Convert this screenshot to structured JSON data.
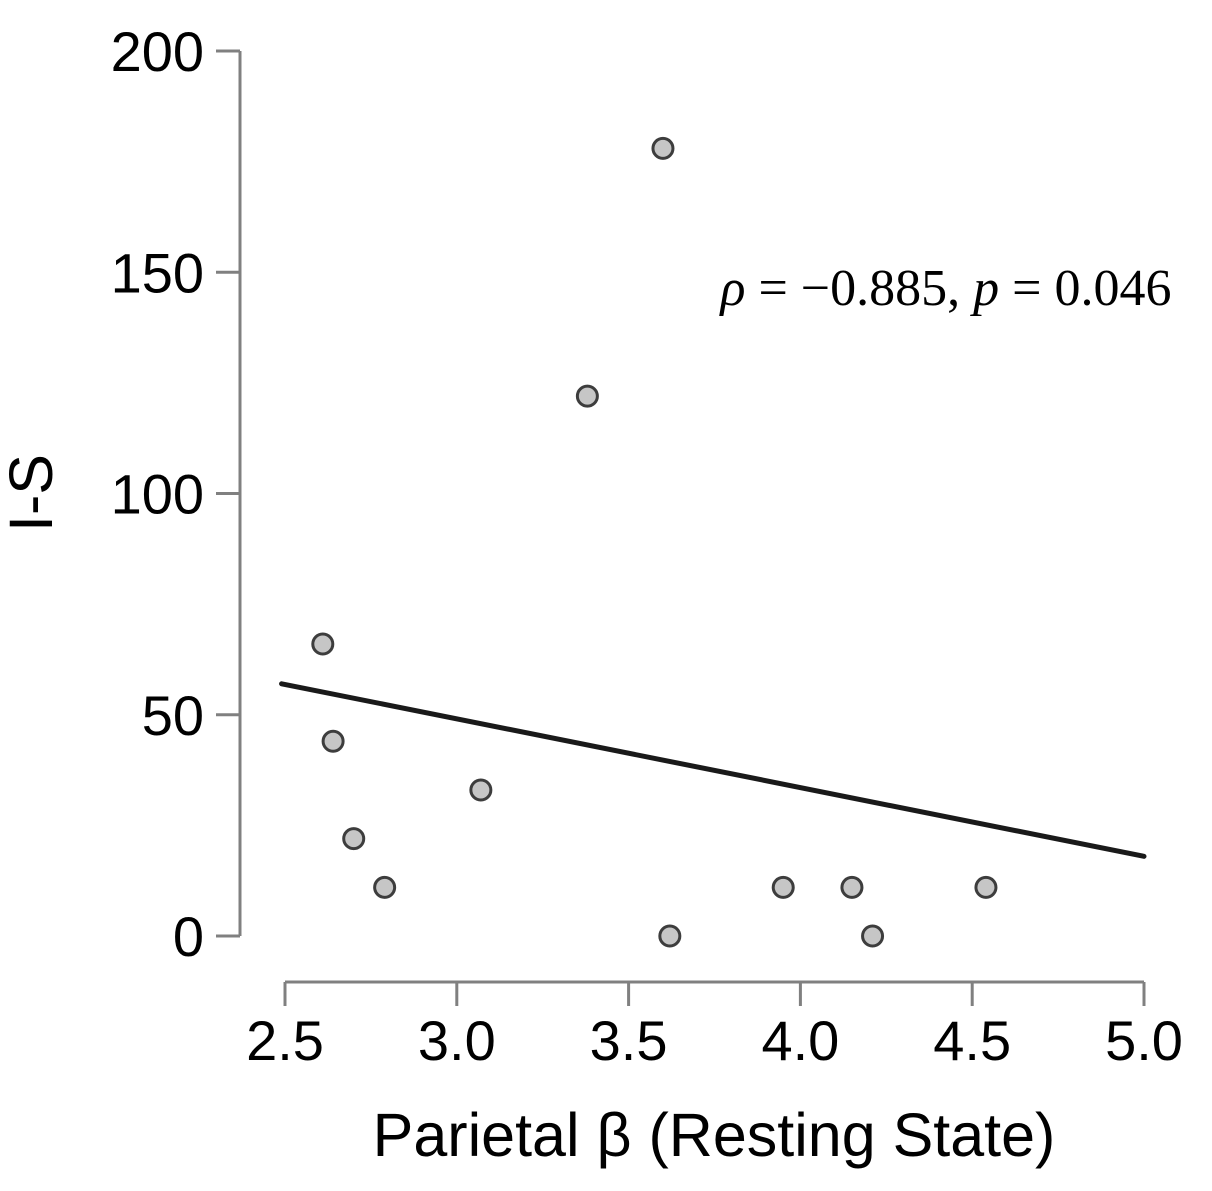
{
  "chart_data": {
    "type": "scatter",
    "title": "",
    "xlabel": "Parietal β (Resting State)",
    "ylabel": "I-S",
    "xlim": [
      2.5,
      5.0
    ],
    "ylim": [
      0,
      200
    ],
    "x_tick_values": [
      2.5,
      3.0,
      3.5,
      4.0,
      4.5,
      5.0
    ],
    "x_tick_labels": [
      "2.5",
      "3.0",
      "3.5",
      "4.0",
      "4.5",
      "5.0"
    ],
    "y_tick_values": [
      0,
      50,
      100,
      150,
      200
    ],
    "y_tick_labels": [
      "0",
      "50",
      "100",
      "150",
      "200"
    ],
    "grid": false,
    "legend": null,
    "points": [
      {
        "x": 2.61,
        "y": 66
      },
      {
        "x": 2.64,
        "y": 44
      },
      {
        "x": 2.7,
        "y": 22
      },
      {
        "x": 2.79,
        "y": 11
      },
      {
        "x": 3.07,
        "y": 33
      },
      {
        "x": 3.38,
        "y": 122
      },
      {
        "x": 3.6,
        "y": 178
      },
      {
        "x": 3.62,
        "y": 0
      },
      {
        "x": 3.95,
        "y": 11
      },
      {
        "x": 4.15,
        "y": 11
      },
      {
        "x": 4.21,
        "y": 0
      },
      {
        "x": 4.54,
        "y": 11
      }
    ],
    "trend_line": {
      "x1": 2.49,
      "y1": 57,
      "x2": 5.0,
      "y2": 18
    },
    "annotation": "ρ = −0.885, p = 0.046",
    "annotation_parts": {
      "rho_symbol": "ρ",
      "rho_rest": " = −0.885, ",
      "p_symbol": "p",
      "p_rest": " = 0.046"
    },
    "colors": {
      "point_fill": "#c6c6c6",
      "point_stroke": "#3d3d3d",
      "trend_line": "#1a1a1a",
      "axis": "#808080",
      "text": "#000000"
    }
  }
}
